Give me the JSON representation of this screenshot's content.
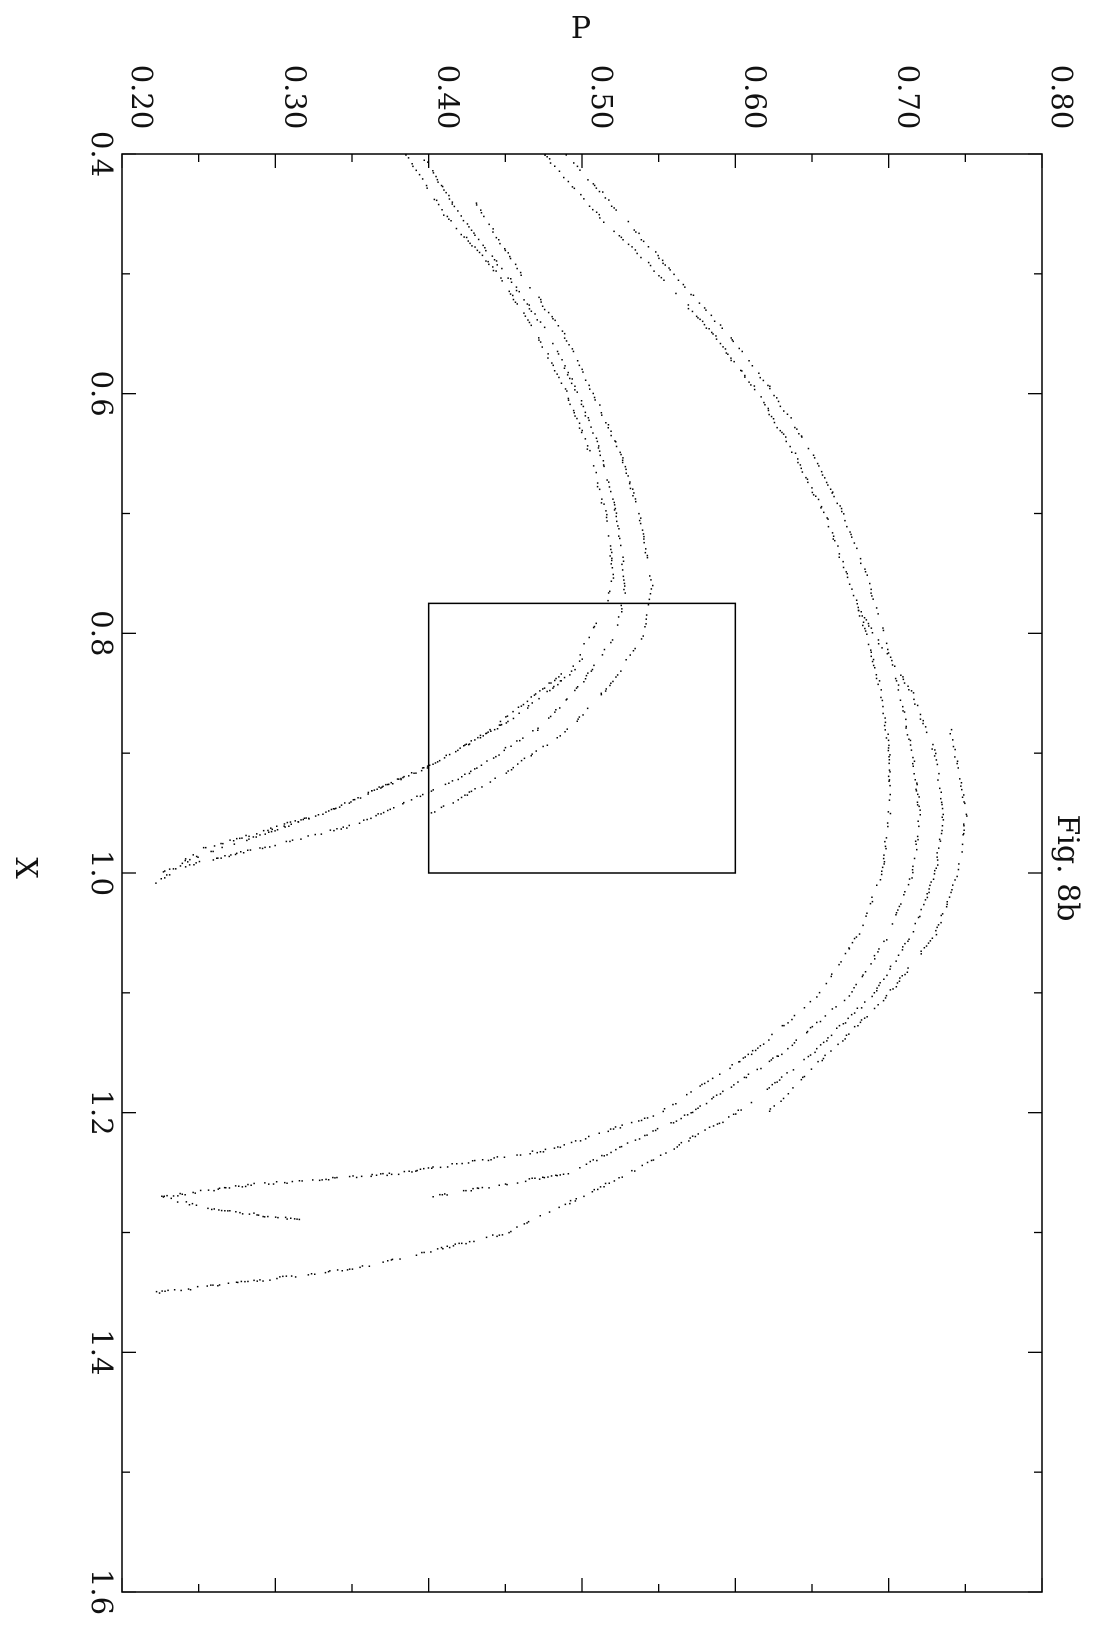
{
  "chart_data": {
    "type": "scatter",
    "title": "",
    "figure_label": "Fig. 8b",
    "xlabel": "X",
    "ylabel": "P",
    "xlim": [
      0.4,
      1.6
    ],
    "ylim": [
      0.2,
      0.8
    ],
    "x_ticks": [
      "0.4",
      "0.6",
      "0.8",
      "1.0",
      "1.2",
      "1.4",
      "1.6"
    ],
    "y_ticks": [
      "0.20",
      "0.30",
      "0.40",
      "0.50",
      "0.60",
      "0.70",
      "0.80"
    ],
    "x_tick_values": [
      0.4,
      0.6,
      0.8,
      1.0,
      1.2,
      1.4,
      1.6
    ],
    "y_tick_values": [
      0.2,
      0.3,
      0.4,
      0.5,
      0.6,
      0.7,
      0.8
    ],
    "grid": false,
    "orientation": "rotated 90 degrees clockwise (X runs down the page, P runs left to right)",
    "marker_color": "#000000",
    "zoom_box": {
      "x_range": [
        0.775,
        1.0
      ],
      "p_range": [
        0.4,
        0.6
      ]
    },
    "series": [
      {
        "strands": [
          [
            [
              0.4,
              0.385
            ],
            [
              0.45,
              0.41
            ],
            [
              0.5,
              0.445
            ],
            [
              0.55,
              0.47
            ],
            [
              0.6,
              0.49
            ],
            [
              0.65,
              0.505
            ],
            [
              0.7,
              0.515
            ],
            [
              0.75,
              0.52
            ],
            [
              0.78,
              0.515
            ],
            [
              0.8,
              0.505
            ],
            [
              0.81,
              0.5
            ],
            [
              0.82,
              0.498
            ]
          ],
          [
            [
              0.4,
              0.395
            ],
            [
              0.45,
              0.42
            ],
            [
              0.5,
              0.45
            ],
            [
              0.55,
              0.478
            ],
            [
              0.6,
              0.497
            ],
            [
              0.65,
              0.512
            ],
            [
              0.7,
              0.522
            ],
            [
              0.76,
              0.528
            ],
            [
              0.8,
              0.522
            ],
            [
              0.84,
              0.5
            ],
            [
              0.88,
              0.47
            ],
            [
              0.92,
              0.42
            ],
            [
              0.96,
              0.35
            ],
            [
              1.0,
              0.22
            ]
          ],
          [
            [
              0.44,
              0.43
            ],
            [
              0.5,
              0.46
            ],
            [
              0.55,
              0.488
            ],
            [
              0.6,
              0.507
            ],
            [
              0.65,
              0.525
            ],
            [
              0.7,
              0.537
            ],
            [
              0.76,
              0.545
            ],
            [
              0.8,
              0.54
            ],
            [
              0.84,
              0.52
            ],
            [
              0.88,
              0.49
            ],
            [
              0.92,
              0.445
            ],
            [
              0.95,
              0.4
            ]
          ],
          [
            [
              0.82,
              0.5
            ],
            [
              0.85,
              0.47
            ],
            [
              0.88,
              0.44
            ],
            [
              0.91,
              0.4
            ],
            [
              0.95,
              0.33
            ],
            [
              0.99,
              0.24
            ]
          ],
          [
            [
              0.83,
              0.495
            ],
            [
              0.87,
              0.455
            ],
            [
              0.91,
              0.4
            ],
            [
              0.95,
              0.33
            ],
            [
              0.98,
              0.25
            ],
            [
              1.01,
              0.22
            ]
          ],
          [
            [
              0.4,
              0.475
            ],
            [
              0.45,
              0.51
            ],
            [
              0.5,
              0.55
            ],
            [
              0.55,
              0.585
            ],
            [
              0.6,
              0.615
            ],
            [
              0.65,
              0.638
            ],
            [
              0.7,
              0.658
            ],
            [
              0.75,
              0.672
            ],
            [
              0.8,
              0.685
            ],
            [
              0.85,
              0.695
            ],
            [
              0.9,
              0.7
            ],
            [
              0.95,
              0.7
            ],
            [
              1.0,
              0.695
            ],
            [
              1.05,
              0.68
            ],
            [
              1.1,
              0.655
            ],
            [
              1.15,
              0.61
            ],
            [
              1.2,
              0.55
            ],
            [
              1.23,
              0.48
            ],
            [
              1.25,
              0.38
            ],
            [
              1.26,
              0.28
            ],
            [
              1.27,
              0.225
            ],
            [
              1.28,
              0.26
            ],
            [
              1.29,
              0.32
            ]
          ],
          [
            [
              0.4,
              0.49
            ],
            [
              0.45,
              0.525
            ],
            [
              0.5,
              0.56
            ],
            [
              0.55,
              0.595
            ],
            [
              0.6,
              0.625
            ],
            [
              0.65,
              0.65
            ],
            [
              0.7,
              0.67
            ],
            [
              0.75,
              0.685
            ],
            [
              0.8,
              0.697
            ],
            [
              0.85,
              0.707
            ],
            [
              0.9,
              0.715
            ],
            [
              0.95,
              0.72
            ],
            [
              1.0,
              0.715
            ],
            [
              1.05,
              0.7
            ],
            [
              1.1,
              0.675
            ],
            [
              1.15,
              0.63
            ],
            [
              1.2,
              0.57
            ],
            [
              1.25,
              0.49
            ],
            [
              1.27,
              0.4
            ]
          ],
          [
            [
              0.78,
              0.68
            ],
            [
              0.85,
              0.715
            ],
            [
              0.9,
              0.73
            ],
            [
              0.95,
              0.735
            ],
            [
              1.0,
              0.73
            ],
            [
              1.05,
              0.715
            ],
            [
              1.1,
              0.69
            ],
            [
              1.15,
              0.65
            ],
            [
              1.2,
              0.6
            ],
            [
              1.25,
              0.53
            ],
            [
              1.3,
              0.45
            ],
            [
              1.33,
              0.35
            ],
            [
              1.35,
              0.22
            ]
          ],
          [
            [
              0.88,
              0.74
            ],
            [
              0.95,
              0.75
            ],
            [
              1.0,
              0.745
            ],
            [
              1.05,
              0.73
            ],
            [
              1.1,
              0.7
            ],
            [
              1.15,
              0.66
            ],
            [
              1.2,
              0.62
            ]
          ]
        ]
      }
    ]
  }
}
